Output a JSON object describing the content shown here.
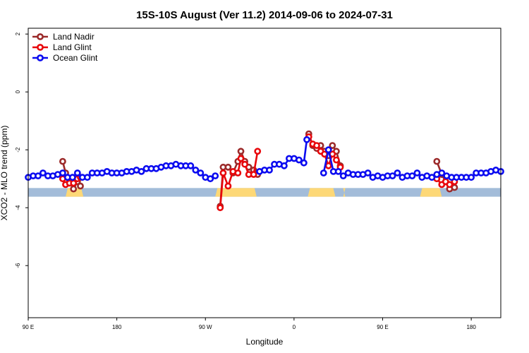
{
  "chart_data": {
    "type": "line",
    "title": "15S-10S August (Ver 11.2)   2014-09-06 to 2024-07-31",
    "xlabel": "Longitude",
    "ylabel": "XCO2 - MLO trend (ppm)",
    "xlim": [
      0,
      480
    ],
    "ylim": [
      -7.8,
      2.2
    ],
    "x_ticks": [
      {
        "value": 0,
        "label": "90 E"
      },
      {
        "value": 90,
        "label": "180"
      },
      {
        "value": 180,
        "label": "90 W"
      },
      {
        "value": 270,
        "label": "0"
      },
      {
        "value": 360,
        "label": "90 E"
      },
      {
        "value": 450,
        "label": "180"
      }
    ],
    "y_ticks": [
      {
        "value": 2,
        "label": "2"
      },
      {
        "value": 0,
        "label": "0"
      },
      {
        "value": -2,
        "label": "-2"
      },
      {
        "value": -4,
        "label": "-4"
      },
      {
        "value": -6,
        "label": "-6"
      }
    ],
    "legend_position": "top-left",
    "land_mask": {
      "band_y": [
        -3.62,
        -3.32
      ],
      "ocean_color": "#a3bcd9",
      "land_color": "#fdd877",
      "land_segments": [
        [
          38,
          56
        ],
        [
          190,
          232
        ],
        [
          284,
          312
        ],
        [
          320,
          322
        ],
        [
          398,
          420
        ]
      ]
    },
    "series": [
      {
        "name": "Land Nadir",
        "color": "#9b2a2a",
        "x": [
          35,
          38,
          42,
          46,
          50,
          53,
          195,
          198,
          203,
          208,
          213,
          216,
          220,
          224,
          229,
          233,
          285,
          289,
          293,
          297,
          301,
          305,
          309,
          313,
          317,
          415,
          420,
          424,
          428,
          433
        ],
        "y": [
          -2.4,
          -2.8,
          -3.05,
          -3.35,
          -3.1,
          -3.25,
          -3.95,
          -2.6,
          -2.6,
          -2.8,
          -2.4,
          -2.05,
          -2.4,
          -2.6,
          -2.7,
          -2.85,
          -1.45,
          -1.85,
          -1.95,
          -1.85,
          -2.05,
          -2.2,
          -1.85,
          -2.05,
          -2.55,
          -2.4,
          -2.85,
          -3.1,
          -3.35,
          -3.3
        ]
      },
      {
        "name": "Land Glint",
        "color": "#e8070b",
        "x": [
          35,
          38,
          42,
          46,
          50,
          53,
          195,
          198,
          203,
          208,
          213,
          216,
          220,
          224,
          229,
          233,
          285,
          289,
          293,
          297,
          301,
          305,
          309,
          313,
          317,
          415,
          420,
          424,
          428,
          433
        ],
        "y": [
          -3.0,
          -3.2,
          -3.15,
          -3.15,
          -3.0,
          -2.95,
          -4.0,
          -2.8,
          -3.25,
          -2.75,
          -2.8,
          -2.3,
          -2.5,
          -2.85,
          -2.85,
          -2.05,
          -1.55,
          -1.8,
          -1.85,
          -2.05,
          -2.15,
          -2.55,
          -2.15,
          -2.35,
          -2.6,
          -3.0,
          -3.2,
          -3.1,
          -3.2,
          -3.1
        ]
      },
      {
        "name": "Ocean Glint",
        "color": "#0b0bf0",
        "x": [
          0,
          5,
          10,
          15,
          20,
          25,
          30,
          35,
          40,
          45,
          50,
          55,
          60,
          65,
          70,
          75,
          80,
          85,
          90,
          95,
          100,
          105,
          110,
          115,
          120,
          125,
          130,
          135,
          140,
          145,
          150,
          155,
          160,
          165,
          170,
          175,
          180,
          185,
          190,
          235,
          240,
          245,
          250,
          255,
          260,
          265,
          270,
          275,
          280,
          300,
          305,
          310,
          315,
          320,
          325,
          330,
          335,
          340,
          345,
          350,
          355,
          360,
          365,
          370,
          375,
          380,
          385,
          390,
          395,
          400,
          405,
          410,
          415,
          420,
          425,
          430,
          435,
          440,
          445,
          450,
          455,
          460,
          465,
          470,
          475,
          480
        ],
        "y": [
          -2.95,
          -2.9,
          -2.9,
          -2.8,
          -2.9,
          -2.9,
          -2.85,
          -2.8,
          -2.95,
          -2.95,
          -2.8,
          -2.95,
          -2.95,
          -2.8,
          -2.8,
          -2.8,
          -2.75,
          -2.8,
          -2.8,
          -2.8,
          -2.75,
          -2.75,
          -2.7,
          -2.75,
          -2.65,
          -2.65,
          -2.65,
          -2.6,
          -2.55,
          -2.55,
          -2.5,
          -2.55,
          -2.55,
          -2.55,
          -2.7,
          -2.8,
          -2.95,
          -3.0,
          -2.9,
          -2.75,
          -2.7,
          -2.7,
          -2.5,
          -2.5,
          -2.55,
          -2.3,
          -2.3,
          -2.35,
          -2.45,
          -2.8,
          -2.0,
          -2.75,
          -2.75,
          -2.9,
          -2.8,
          -2.85,
          -2.85,
          -2.85,
          -2.8,
          -2.95,
          -2.9,
          -2.95,
          -2.9,
          -2.9,
          -2.8,
          -2.95,
          -2.9,
          -2.9,
          -2.8,
          -2.95,
          -2.9,
          -2.95,
          -2.85,
          -2.8,
          -2.9,
          -2.95,
          -2.95,
          -2.95,
          -2.95,
          -2.95,
          -2.8,
          -2.8,
          -2.8,
          -2.75,
          -2.7,
          -2.75
        ]
      },
      {
        "name": "",
        "color": "#0b0bf0",
        "x": [
          280,
          283
        ],
        "y": [
          -2.45,
          -1.65
        ]
      }
    ]
  }
}
